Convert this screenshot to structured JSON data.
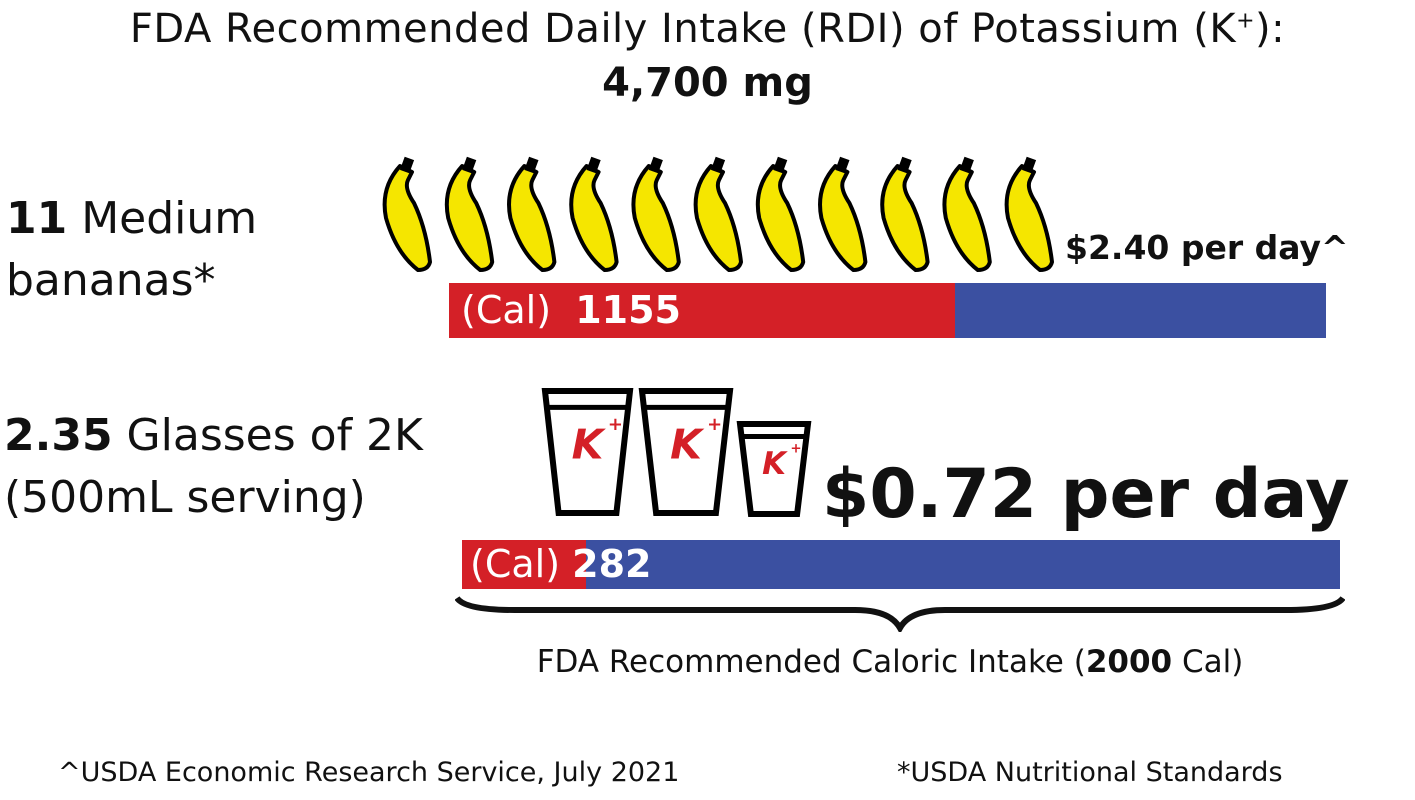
{
  "title": {
    "text": "FDA Recommended Daily Intake (RDI) of Potassium (K",
    "sup": "+",
    "suffix": "):"
  },
  "rdi_value": "4,700 mg",
  "rows": [
    {
      "count": "11",
      "label_line1": " Medium",
      "label_line2": "bananas*",
      "icon": "banana-icon",
      "icon_count": 11,
      "cost": "$2.40 per day^",
      "bar_prefix": "(Cal)",
      "calories": "1155"
    },
    {
      "count": "2.35",
      "label_line1": " Glasses of 2K",
      "label_line2": "(500mL serving)",
      "icon": "cup-icon",
      "icon_count": 3,
      "cost": "$0.72 per day",
      "bar_prefix": "(Cal)",
      "calories": "282"
    }
  ],
  "caloric_intake": {
    "prefix": "FDA Recommended Caloric Intake (",
    "value": "2000",
    "suffix": " Cal)"
  },
  "footnotes": {
    "left": "^USDA Economic Research Service, July 2021",
    "right": "*USDA Nutritional Standards"
  },
  "colors": {
    "calories": "#d42027",
    "remaining": "#3b50a1",
    "banana": "#f5e600",
    "logo": "#d42027"
  },
  "chart_data": {
    "type": "bar",
    "orientation": "horizontal-stacked",
    "categories": [
      "11 Medium bananas",
      "2.35 Glasses of 2K"
    ],
    "series": [
      {
        "values": [
          1155,
          282
        ]
      }
    ],
    "total": 2000,
    "xlim": [
      0,
      2000
    ]
  }
}
